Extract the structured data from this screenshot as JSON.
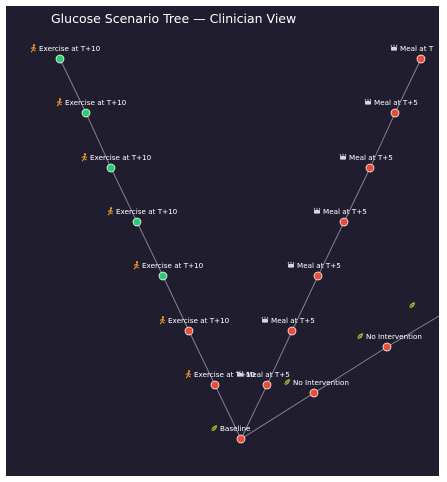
{
  "title": "Glucose Scenario Tree — Clinician View",
  "colors": {
    "background": "#1f1d2e",
    "edge": "#8a8a96",
    "node_good": "#2ecc71",
    "node_bad": "#e74c3c",
    "exercise_icon": "#f0a030",
    "meal_icon": "#cfd8e6",
    "baseline_icon": "#9acd32"
  },
  "nodes": [
    {
      "id": "baseline",
      "label": "Baseline",
      "icon": "leaf-icon",
      "status": "bad"
    },
    {
      "id": "ex1",
      "label": "Exercise at T+10",
      "icon": "runner-icon",
      "status": "bad"
    },
    {
      "id": "ex2",
      "label": "Exercise at T+10",
      "icon": "runner-icon",
      "status": "bad"
    },
    {
      "id": "ex3",
      "label": "Exercise at T+10",
      "icon": "runner-icon",
      "status": "good"
    },
    {
      "id": "ex4",
      "label": "Exercise at T+10",
      "icon": "runner-icon",
      "status": "good"
    },
    {
      "id": "ex5",
      "label": "Exercise at T+10",
      "icon": "runner-icon",
      "status": "good"
    },
    {
      "id": "ex6",
      "label": "Exercise at T+10",
      "icon": "runner-icon",
      "status": "good"
    },
    {
      "id": "ex7",
      "label": "Exercise at T+10",
      "icon": "runner-icon",
      "status": "good"
    },
    {
      "id": "meal1",
      "label": "Meal at T+5",
      "icon": "meal-icon",
      "status": "bad"
    },
    {
      "id": "meal2",
      "label": "Meal at T+5",
      "icon": "meal-icon",
      "status": "bad"
    },
    {
      "id": "meal3",
      "label": "Meal at T+5",
      "icon": "meal-icon",
      "status": "bad"
    },
    {
      "id": "meal4",
      "label": "Meal at T+5",
      "icon": "meal-icon",
      "status": "bad"
    },
    {
      "id": "meal5",
      "label": "Meal at T+5",
      "icon": "meal-icon",
      "status": "bad"
    },
    {
      "id": "meal6",
      "label": "Meal at T+5",
      "icon": "meal-icon",
      "status": "bad"
    },
    {
      "id": "meal7",
      "label": "Meal at T",
      "icon": "meal-icon",
      "status": "bad"
    },
    {
      "id": "ni1",
      "label": "No Intervention",
      "icon": "leaf-icon",
      "status": "bad"
    },
    {
      "id": "ni2",
      "label": "No Intervention",
      "icon": "leaf-icon",
      "status": "bad"
    },
    {
      "id": "ni3",
      "label": "",
      "icon": "leaf-icon",
      "status": "none"
    }
  ],
  "edges": [
    [
      "baseline",
      "ex1"
    ],
    [
      "ex1",
      "ex2"
    ],
    [
      "ex2",
      "ex3"
    ],
    [
      "ex3",
      "ex4"
    ],
    [
      "ex4",
      "ex5"
    ],
    [
      "ex5",
      "ex6"
    ],
    [
      "ex6",
      "ex7"
    ],
    [
      "baseline",
      "meal1"
    ],
    [
      "meal1",
      "meal2"
    ],
    [
      "meal2",
      "meal3"
    ],
    [
      "meal3",
      "meal4"
    ],
    [
      "meal4",
      "meal5"
    ],
    [
      "meal5",
      "meal6"
    ],
    [
      "meal6",
      "meal7"
    ],
    [
      "baseline",
      "ni1"
    ],
    [
      "ni1",
      "ni2"
    ],
    [
      "ni2",
      "ni3"
    ]
  ]
}
